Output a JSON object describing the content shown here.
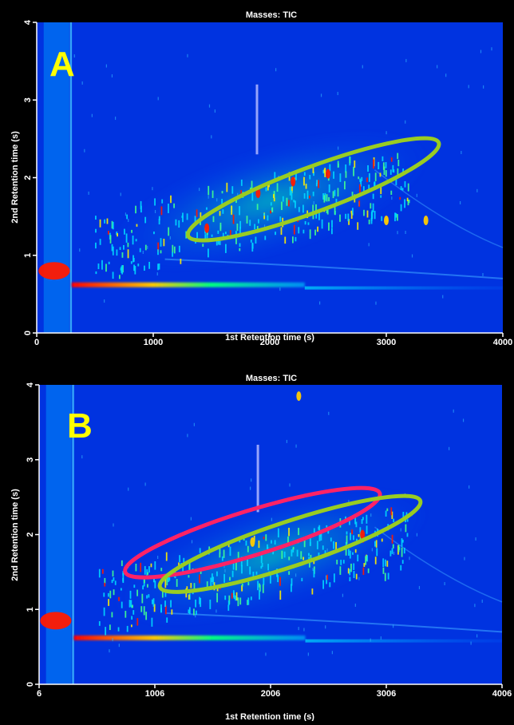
{
  "chart_data": [
    {
      "type": "heatmap",
      "panel_label": "A",
      "title": "Masses:  TIC",
      "xlabel": "1st Retention time (s)",
      "ylabel": "2nd Retention time (s)",
      "xlim": [
        0,
        4000
      ],
      "ylim": [
        0,
        4
      ],
      "xticks": [
        0,
        1000,
        2000,
        3000,
        4000
      ],
      "xtick_labels": [
        "0",
        "1000",
        "2000",
        "3000",
        "4000"
      ],
      "yticks": [
        0,
        1,
        2,
        3,
        4
      ],
      "ytick_labels": [
        "0",
        "1",
        "2",
        "3",
        "4"
      ],
      "colormap": [
        "#0000cc",
        "#0050ff",
        "#00c8ff",
        "#00ff80",
        "#ffff00",
        "#ff0000"
      ],
      "ellipses": [
        {
          "color": "#99cc22",
          "x1": 1300,
          "y1": 1.25,
          "x2": 3450,
          "y2": 2.45
        }
      ],
      "hot_spots": [
        {
          "x": 1460,
          "y": 1.35,
          "level": "high"
        },
        {
          "x": 150,
          "y": 0.8,
          "level": "high"
        },
        {
          "x": 2200,
          "y": 1.95,
          "level": "high"
        },
        {
          "x": 2500,
          "y": 2.05,
          "level": "high"
        },
        {
          "x": 1900,
          "y": 1.8,
          "level": "high"
        },
        {
          "x": 3000,
          "y": 1.45,
          "level": "medium"
        },
        {
          "x": 3340,
          "y": 1.45,
          "level": "medium"
        }
      ]
    },
    {
      "type": "heatmap",
      "panel_label": "B",
      "title": "Masses:  TIC",
      "xlabel": "1st Retention time (s)",
      "ylabel": "2nd Retention time (s)",
      "xlim": [
        6,
        4006
      ],
      "ylim": [
        0,
        4
      ],
      "xticks": [
        6,
        1006,
        2006,
        3006,
        4006
      ],
      "xtick_labels": [
        "6",
        "1006",
        "2006",
        "3006",
        "4006"
      ],
      "yticks": [
        0,
        1,
        2,
        3,
        4
      ],
      "ytick_labels": [
        "0",
        "1",
        "2",
        "3",
        "4"
      ],
      "colormap": [
        "#0000cc",
        "#0050ff",
        "#00c8ff",
        "#00ff80",
        "#ffff00",
        "#ff0000"
      ],
      "ellipses": [
        {
          "color": "#ff2266",
          "x1": 750,
          "y1": 1.5,
          "x2": 2950,
          "y2": 2.55
        },
        {
          "color": "#99cc22",
          "x1": 1050,
          "y1": 1.3,
          "x2": 3300,
          "y2": 2.45
        }
      ],
      "hot_spots": [
        {
          "x": 150,
          "y": 0.85,
          "level": "high"
        },
        {
          "x": 2250,
          "y": 3.85,
          "level": "medium"
        },
        {
          "x": 1850,
          "y": 1.9,
          "level": "medium"
        },
        {
          "x": 2800,
          "y": 2.0,
          "level": "high"
        }
      ]
    }
  ]
}
